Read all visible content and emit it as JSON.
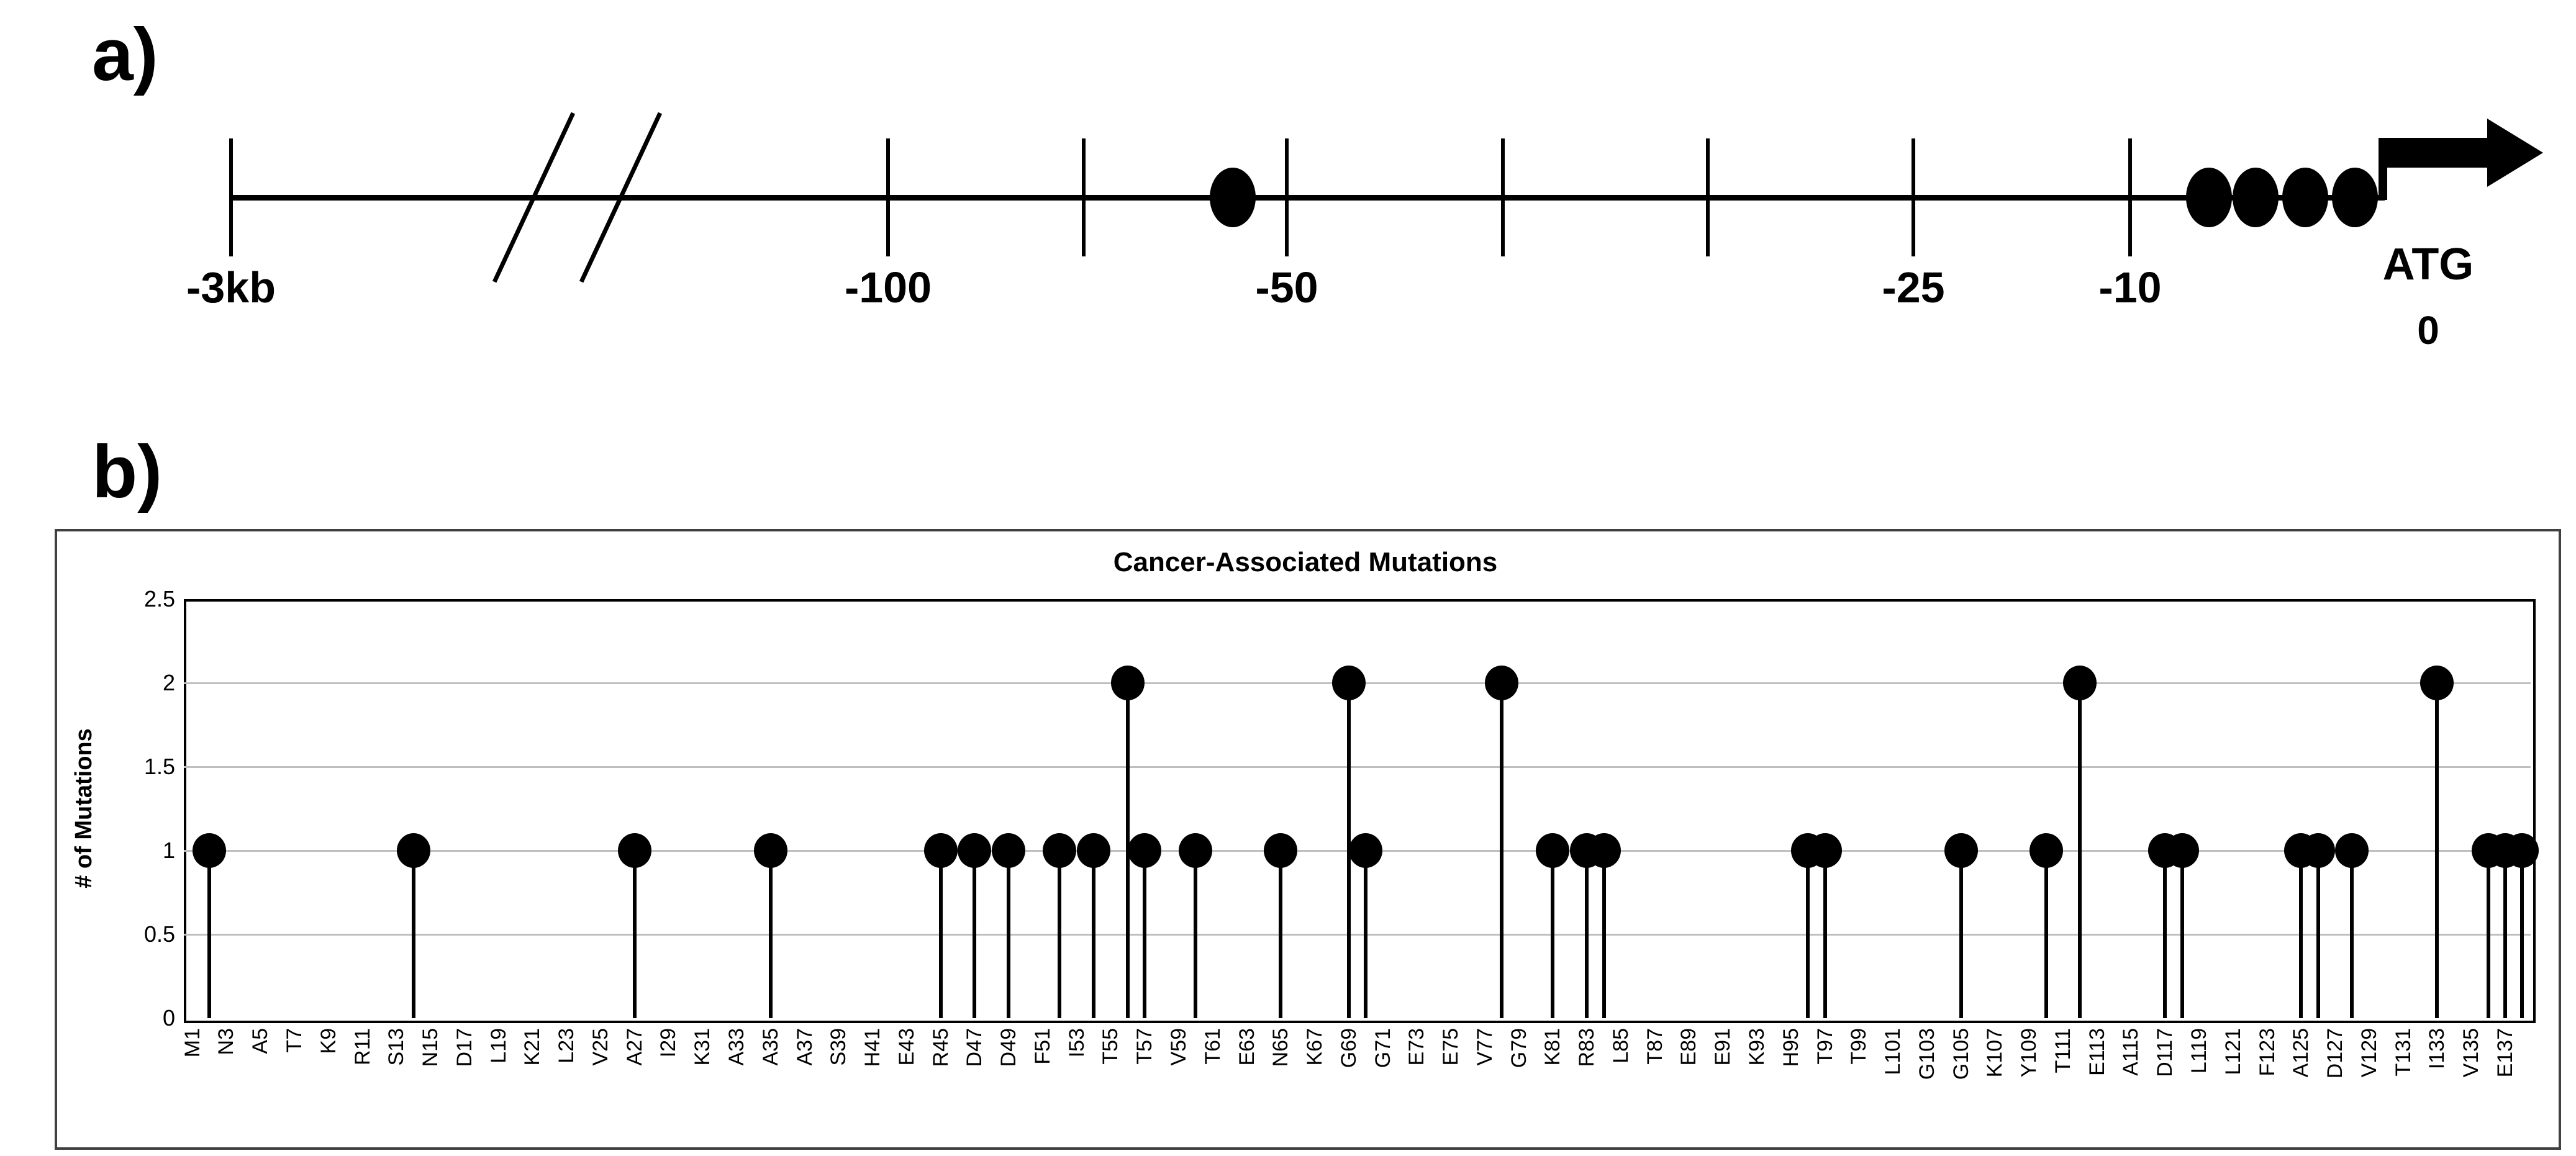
{
  "panel_a": {
    "label": "a)",
    "axis": {
      "line": {
        "x1": 372,
        "x2": 3840,
        "y": 318,
        "thickness": 9
      },
      "ticks": [
        {
          "x": 372,
          "label": "-3kb"
        },
        {
          "x": 1430,
          "label": "-100"
        },
        {
          "x": 1745,
          "label": ""
        },
        {
          "x": 2072,
          "label": "-50"
        },
        {
          "x": 2420,
          "label": ""
        },
        {
          "x": 2750,
          "label": ""
        },
        {
          "x": 3081,
          "label": "-25"
        },
        {
          "x": 3430,
          "label": "-10"
        }
      ],
      "break_marks_x": [
        860,
        1000
      ],
      "upstream_dot_x": 1985,
      "proximal_dots_x": [
        3557,
        3632,
        3712,
        3792
      ],
      "tss_arrow": {
        "riser_x": 3830,
        "bar_end_x": 4005,
        "tip_x": 4095
      },
      "atg_label": "ATG",
      "origin_label": "0"
    }
  },
  "panel_b": {
    "label": "b)",
    "chart_data": {
      "type": "lollipop",
      "title": "Cancer-Associated Mutations",
      "ylabel": "# of Mutations",
      "xlabel": "",
      "ylim": [
        0,
        2.5
      ],
      "yticks": [
        0,
        0.5,
        1,
        1.5,
        2,
        2.5
      ],
      "grid": true,
      "legend": "none",
      "n_positions": 138,
      "x_tick_labels": [
        "M1",
        "N3",
        "A5",
        "T7",
        "K9",
        "R11",
        "S13",
        "N15",
        "D17",
        "L19",
        "K21",
        "L23",
        "V25",
        "A27",
        "I29",
        "K31",
        "A33",
        "A35",
        "A37",
        "S39",
        "H41",
        "E43",
        "R45",
        "D47",
        "D49",
        "F51",
        "I53",
        "T55",
        "T57",
        "V59",
        "T61",
        "E63",
        "N65",
        "K67",
        "G69",
        "G71",
        "E73",
        "E75",
        "V77",
        "G79",
        "K81",
        "R83",
        "L85",
        "T87",
        "E89",
        "E91",
        "K93",
        "H95",
        "T97",
        "T99",
        "L101",
        "G103",
        "G105",
        "K107",
        "Y109",
        "T111",
        "E113",
        "A115",
        "D117",
        "L119",
        "L121",
        "F123",
        "A125",
        "D127",
        "V129",
        "T131",
        "I133",
        "V135",
        "E137"
      ],
      "mutations": [
        {
          "position": 2,
          "count": 1
        },
        {
          "position": 14,
          "count": 1
        },
        {
          "position": 27,
          "count": 1
        },
        {
          "position": 35,
          "count": 1
        },
        {
          "position": 45,
          "count": 1
        },
        {
          "position": 47,
          "count": 1
        },
        {
          "position": 49,
          "count": 1
        },
        {
          "position": 52,
          "count": 1
        },
        {
          "position": 54,
          "count": 1
        },
        {
          "position": 56,
          "count": 2
        },
        {
          "position": 57,
          "count": 1
        },
        {
          "position": 60,
          "count": 1
        },
        {
          "position": 65,
          "count": 1
        },
        {
          "position": 69,
          "count": 2
        },
        {
          "position": 70,
          "count": 1
        },
        {
          "position": 78,
          "count": 2
        },
        {
          "position": 81,
          "count": 1
        },
        {
          "position": 83,
          "count": 1
        },
        {
          "position": 84,
          "count": 1
        },
        {
          "position": 96,
          "count": 1
        },
        {
          "position": 97,
          "count": 1
        },
        {
          "position": 105,
          "count": 1
        },
        {
          "position": 110,
          "count": 1
        },
        {
          "position": 112,
          "count": 2
        },
        {
          "position": 117,
          "count": 1
        },
        {
          "position": 118,
          "count": 1
        },
        {
          "position": 125,
          "count": 1
        },
        {
          "position": 126,
          "count": 1
        },
        {
          "position": 128,
          "count": 1
        },
        {
          "position": 133,
          "count": 2
        },
        {
          "position": 136,
          "count": 1
        },
        {
          "position": 137,
          "count": 1
        },
        {
          "position": 138,
          "count": 1
        }
      ]
    }
  },
  "colors": {
    "ink": "#000000",
    "gridline": "#bfbfbf",
    "outer_box_border": "#404040"
  }
}
